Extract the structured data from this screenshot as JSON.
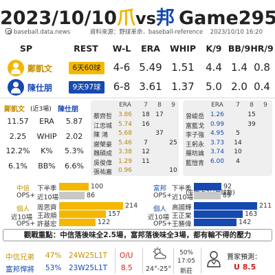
{
  "title": {
    "date": "2023/10/10",
    "away": "爪",
    "vs": "vs",
    "home": "邦",
    "game": "Game295"
  },
  "source": {
    "site": "baseball.data.news",
    "text": "資料來源：野球革命．baseball-reference",
    "timestamp": "2023/10/10  16:20"
  },
  "headers": [
    "SP",
    "REST",
    "W-L",
    "ERA",
    "WHIP",
    "K/9",
    "BB/9",
    "HR/9"
  ],
  "pitchers": [
    {
      "name": "鄭凱文",
      "rest": "6天60球",
      "wl": "4-6",
      "era": "5.49",
      "whip": "1.51",
      "k9": "4.4",
      "bb9": "1.4",
      "hr9": "0.8"
    },
    {
      "name": "陳仕朋",
      "rest": "9天97球",
      "wl": "6-8",
      "era": "3.61",
      "whip": "1.37",
      "k9": "5.0",
      "bb9": "2.0",
      "hr9": "0.4"
    }
  ],
  "recent": {
    "away_name": "鄭凱文",
    "note": "(近3場)",
    "home_name": "陳仕朋",
    "rows": [
      {
        "away": "11.57",
        "stat": "ERA",
        "home": "5.87"
      },
      {
        "away": "2.25",
        "stat": "WHIP",
        "home": "2.02"
      },
      {
        "away": "12.2%",
        "stat": "K%",
        "home": "5.3%"
      },
      {
        "away": "6.1%",
        "stat": "BB%",
        "home": "6.6%"
      }
    ]
  },
  "bullpen": {
    "away_head": [
      "ERA",
      "7",
      "8",
      "9"
    ],
    "home_head": [
      "ERA",
      "7",
      "8",
      "9"
    ],
    "away": [
      {
        "name": "蔡齊哲",
        "era": "3.86",
        "c7": "18",
        "c8": "17",
        "c9": ""
      },
      {
        "name": "江忠城",
        "era": "5.74",
        "c7": "16",
        "c8": "",
        "c9": ""
      },
      {
        "name": "陳  鴻",
        "era": "5.68",
        "c7": "",
        "c8": "37",
        "c9": ""
      },
      {
        "name": "謝榮豪",
        "era": "5.46",
        "c7": "7",
        "c8": "",
        "c9": "25"
      },
      {
        "name": "魏碩成",
        "era": "3.38",
        "c7": "12",
        "c8": "",
        "c9": ""
      },
      {
        "name": "吳俊偉",
        "era": "1.29",
        "c7": "11",
        "c8": "",
        "c9": ""
      },
      {
        "name": "張祐嘉",
        "era": "0.96",
        "c7": "",
        "c8": "",
        "c9": "10"
      }
    ],
    "home": [
      {
        "name": "曾峻岳",
        "era": "1.26",
        "c7": "",
        "c8": "15",
        "c9": ""
      },
      {
        "name": "富藍戈",
        "era": "0.99",
        "c7": "",
        "c8": "39",
        "c9": ""
      },
      {
        "name": "李子強",
        "era": "4.95",
        "c7": "5",
        "c8": "",
        "c9": ""
      },
      {
        "name": "王躬永",
        "era": "3.73",
        "c7": "14",
        "c8": "",
        "c9": ""
      },
      {
        "name": "羅昉論",
        "era": "3.74",
        "c7": "10",
        "c8": "",
        "c9": ""
      },
      {
        "name": "藍愷青",
        "era": "6.00",
        "c7": "4",
        "c8": "",
        "c9": ""
      }
    ],
    "note": "(牛棚近3日用球數)"
  },
  "ops": {
    "away_team": "中信",
    "home_team": "富邦",
    "ops_label": "OPS+",
    "individual": "個人",
    "recent10": "近10場",
    "away_team_half": {
      "label": "下半季",
      "value": "100"
    },
    "away_team_recent": {
      "label": "近10場",
      "value": "86"
    },
    "home_team_half": {
      "label": "下半季",
      "value": "92"
    },
    "home_team_recent": {
      "label": "近10場",
      "value": "89"
    },
    "away_players": [
      {
        "name": "周思齊",
        "value": "214"
      },
      {
        "name": "王政順",
        "value": "157"
      },
      {
        "name": "許基宏",
        "value": "122"
      }
    ],
    "home_players": [
      {
        "name": "高國輝",
        "value": "211"
      },
      {
        "name": "王正棠",
        "value": "163"
      },
      {
        "name": "王勝偉",
        "value": "142"
      }
    ],
    "scale_max": 230
  },
  "focus": "觀戰重點：中信落後味全2.5場，富邦落後味全3場，都有輸不得的壓力",
  "bottom": {
    "away_team": "中信兄弟",
    "away_pct": "47%",
    "away_record": "24W25L1T",
    "home_team": "富邦悍將",
    "home_pct": "53%",
    "home_record": "23W25L1T",
    "ou_label": "O/U",
    "ou_value": "8.5",
    "weather_temp": "24°-25°",
    "rain_pct": "50%",
    "time": "17:05",
    "venue": "新莊",
    "pred_label": "賈家預測：",
    "pred_value": "U 8.5"
  }
}
